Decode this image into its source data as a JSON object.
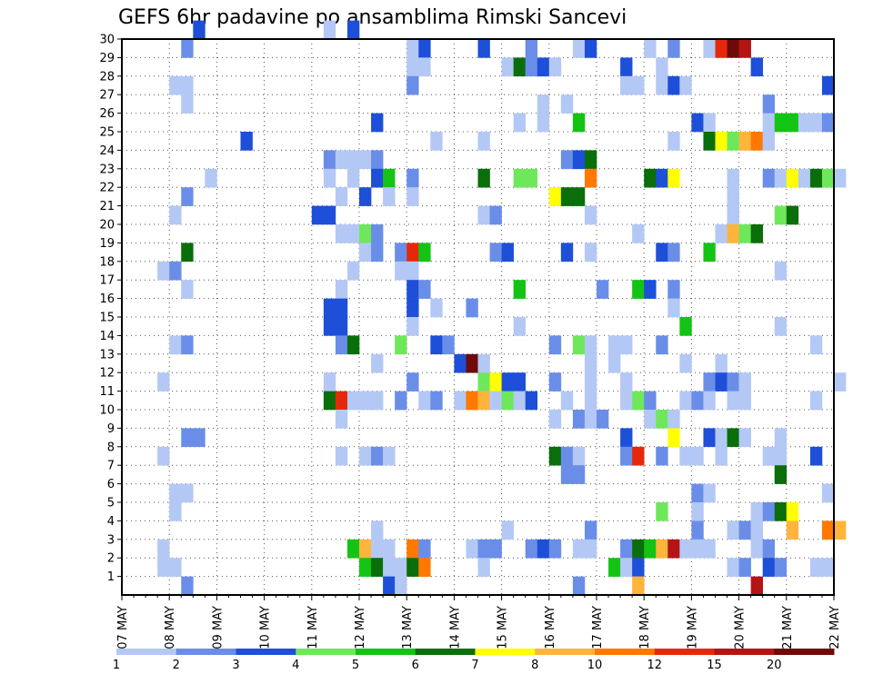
{
  "chart_data": {
    "type": "heatmap",
    "title": "GEFS 6hr padavine po ansamblima Rimski Sancevi",
    "xlabel": "",
    "ylabel": "",
    "x_unit": "6-hour steps",
    "x_range": [
      0,
      60
    ],
    "x_ticks": [
      "07 MAY",
      "08 MAY",
      "09 MAY",
      "10 MAY",
      "11 MAY",
      "12 MAY",
      "13 MAY",
      "14 MAY",
      "15 MAY",
      "16 MAY",
      "17 MAY",
      "18 MAY",
      "19 MAY",
      "20 MAY",
      "21 MAY",
      "22 MAY"
    ],
    "y_ticks": [
      1,
      2,
      3,
      4,
      5,
      6,
      7,
      8,
      9,
      10,
      11,
      12,
      13,
      14,
      15,
      16,
      17,
      18,
      19,
      20,
      21,
      22,
      23,
      24,
      25,
      26,
      27,
      28,
      29,
      30
    ],
    "y_range": [
      0,
      30
    ],
    "grid": true,
    "colorbar": {
      "labels": [
        "1",
        "2",
        "3",
        "4",
        "5",
        "6",
        "7",
        "8",
        "10",
        "12",
        "15",
        "20"
      ],
      "colors": [
        "#b4c8f5",
        "#6a8ee8",
        "#1e4fd8",
        "#6ee85a",
        "#14c414",
        "#0a6e0a",
        "#ffff00",
        "#ffb43c",
        "#ff7800",
        "#e6280a",
        "#b41414",
        "#6e0a0a"
      ]
    },
    "cells": [
      [
        6,
        30,
        2
      ],
      [
        17,
        30,
        0
      ],
      [
        19,
        30,
        2
      ],
      [
        5,
        29,
        1
      ],
      [
        24,
        29,
        0
      ],
      [
        25,
        29,
        2
      ],
      [
        30,
        29,
        2
      ],
      [
        34,
        29,
        1
      ],
      [
        38,
        29,
        0
      ],
      [
        39,
        29,
        2
      ],
      [
        44,
        29,
        0
      ],
      [
        46,
        29,
        1
      ],
      [
        49,
        29,
        0
      ],
      [
        50,
        29,
        9
      ],
      [
        51,
        29,
        11
      ],
      [
        52,
        29,
        10
      ],
      [
        24,
        28,
        0
      ],
      [
        25,
        28,
        0
      ],
      [
        32,
        28,
        0
      ],
      [
        33,
        28,
        5
      ],
      [
        34,
        28,
        1
      ],
      [
        35,
        28,
        2
      ],
      [
        36,
        28,
        0
      ],
      [
        42,
        28,
        2
      ],
      [
        45,
        28,
        0
      ],
      [
        53,
        28,
        2
      ],
      [
        4,
        27,
        0
      ],
      [
        5,
        27,
        0
      ],
      [
        24,
        27,
        1
      ],
      [
        42,
        27,
        0
      ],
      [
        43,
        27,
        0
      ],
      [
        45,
        27,
        0
      ],
      [
        46,
        27,
        2
      ],
      [
        47,
        27,
        0
      ],
      [
        59,
        27,
        2
      ],
      [
        5,
        26,
        0
      ],
      [
        35,
        26,
        0
      ],
      [
        37,
        26,
        0
      ],
      [
        54,
        26,
        1
      ],
      [
        21,
        25,
        2
      ],
      [
        33,
        25,
        0
      ],
      [
        35,
        25,
        0
      ],
      [
        38,
        25,
        4
      ],
      [
        48,
        25,
        2
      ],
      [
        49,
        25,
        0
      ],
      [
        54,
        25,
        0
      ],
      [
        55,
        25,
        4
      ],
      [
        56,
        25,
        4
      ],
      [
        57,
        25,
        0
      ],
      [
        58,
        25,
        0
      ],
      [
        59,
        25,
        1
      ],
      [
        10,
        24,
        2
      ],
      [
        26,
        24,
        0
      ],
      [
        30,
        24,
        0
      ],
      [
        46,
        24,
        0
      ],
      [
        49,
        24,
        5
      ],
      [
        50,
        24,
        6
      ],
      [
        51,
        24,
        3
      ],
      [
        52,
        24,
        7
      ],
      [
        53,
        24,
        8
      ],
      [
        54,
        24,
        0
      ],
      [
        17,
        23,
        1
      ],
      [
        18,
        23,
        0
      ],
      [
        19,
        23,
        0
      ],
      [
        20,
        23,
        0
      ],
      [
        21,
        23,
        1
      ],
      [
        37,
        23,
        1
      ],
      [
        38,
        23,
        2
      ],
      [
        39,
        23,
        5
      ],
      [
        7,
        22,
        0
      ],
      [
        17,
        22,
        0
      ],
      [
        19,
        22,
        0
      ],
      [
        21,
        22,
        2
      ],
      [
        22,
        22,
        4
      ],
      [
        24,
        22,
        1
      ],
      [
        30,
        22,
        5
      ],
      [
        33,
        22,
        3
      ],
      [
        34,
        22,
        3
      ],
      [
        39,
        22,
        8
      ],
      [
        44,
        22,
        5
      ],
      [
        45,
        22,
        2
      ],
      [
        46,
        22,
        6
      ],
      [
        51,
        22,
        0
      ],
      [
        54,
        22,
        1
      ],
      [
        55,
        22,
        0
      ],
      [
        56,
        22,
        6
      ],
      [
        57,
        22,
        0
      ],
      [
        58,
        22,
        5
      ],
      [
        59,
        22,
        3
      ],
      [
        60,
        22,
        0
      ],
      [
        5,
        21,
        1
      ],
      [
        18,
        21,
        0
      ],
      [
        20,
        21,
        2
      ],
      [
        22,
        21,
        0
      ],
      [
        24,
        21,
        0
      ],
      [
        36,
        21,
        6
      ],
      [
        37,
        21,
        5
      ],
      [
        38,
        21,
        5
      ],
      [
        51,
        21,
        0
      ],
      [
        4,
        20,
        0
      ],
      [
        16,
        20,
        2
      ],
      [
        17,
        20,
        2
      ],
      [
        30,
        20,
        0
      ],
      [
        31,
        20,
        1
      ],
      [
        39,
        20,
        0
      ],
      [
        51,
        20,
        0
      ],
      [
        55,
        20,
        3
      ],
      [
        56,
        20,
        5
      ],
      [
        18,
        19,
        0
      ],
      [
        19,
        19,
        0
      ],
      [
        20,
        19,
        3
      ],
      [
        21,
        19,
        1
      ],
      [
        43,
        19,
        0
      ],
      [
        50,
        19,
        0
      ],
      [
        51,
        19,
        7
      ],
      [
        52,
        19,
        3
      ],
      [
        53,
        19,
        5
      ],
      [
        5,
        18,
        5
      ],
      [
        20,
        18,
        0
      ],
      [
        21,
        18,
        1
      ],
      [
        23,
        18,
        1
      ],
      [
        24,
        18,
        9
      ],
      [
        25,
        18,
        4
      ],
      [
        31,
        18,
        1
      ],
      [
        32,
        18,
        2
      ],
      [
        37,
        18,
        2
      ],
      [
        39,
        18,
        0
      ],
      [
        45,
        18,
        2
      ],
      [
        46,
        18,
        1
      ],
      [
        49,
        18,
        4
      ],
      [
        3,
        17,
        0
      ],
      [
        4,
        17,
        1
      ],
      [
        19,
        17,
        0
      ],
      [
        23,
        17,
        0
      ],
      [
        24,
        17,
        0
      ],
      [
        55,
        17,
        0
      ],
      [
        5,
        16,
        0
      ],
      [
        18,
        16,
        0
      ],
      [
        24,
        16,
        2
      ],
      [
        25,
        16,
        1
      ],
      [
        33,
        16,
        4
      ],
      [
        40,
        16,
        1
      ],
      [
        43,
        16,
        4
      ],
      [
        44,
        16,
        2
      ],
      [
        46,
        16,
        1
      ],
      [
        17,
        15,
        2
      ],
      [
        18,
        15,
        2
      ],
      [
        24,
        15,
        2
      ],
      [
        26,
        15,
        0
      ],
      [
        29,
        15,
        1
      ],
      [
        46,
        15,
        0
      ],
      [
        17,
        14,
        2
      ],
      [
        18,
        14,
        2
      ],
      [
        24,
        14,
        0
      ],
      [
        33,
        14,
        0
      ],
      [
        47,
        14,
        4
      ],
      [
        55,
        14,
        0
      ],
      [
        4,
        13,
        0
      ],
      [
        5,
        13,
        1
      ],
      [
        18,
        13,
        1
      ],
      [
        19,
        13,
        5
      ],
      [
        23,
        13,
        3
      ],
      [
        26,
        13,
        2
      ],
      [
        27,
        13,
        1
      ],
      [
        36,
        13,
        1
      ],
      [
        38,
        13,
        3
      ],
      [
        39,
        13,
        0
      ],
      [
        41,
        13,
        0
      ],
      [
        42,
        13,
        0
      ],
      [
        45,
        13,
        1
      ],
      [
        58,
        13,
        0
      ],
      [
        21,
        12,
        0
      ],
      [
        28,
        12,
        2
      ],
      [
        29,
        12,
        11
      ],
      [
        30,
        12,
        0
      ],
      [
        39,
        12,
        0
      ],
      [
        41,
        12,
        0
      ],
      [
        47,
        12,
        0
      ],
      [
        50,
        12,
        0
      ],
      [
        3,
        11,
        0
      ],
      [
        17,
        11,
        0
      ],
      [
        24,
        11,
        1
      ],
      [
        30,
        11,
        3
      ],
      [
        31,
        11,
        6
      ],
      [
        32,
        11,
        2
      ],
      [
        33,
        11,
        2
      ],
      [
        36,
        11,
        1
      ],
      [
        39,
        11,
        0
      ],
      [
        42,
        11,
        0
      ],
      [
        49,
        11,
        1
      ],
      [
        50,
        11,
        2
      ],
      [
        51,
        11,
        1
      ],
      [
        52,
        11,
        0
      ],
      [
        60,
        11,
        0
      ],
      [
        17,
        10,
        5
      ],
      [
        18,
        10,
        9
      ],
      [
        19,
        10,
        0
      ],
      [
        20,
        10,
        0
      ],
      [
        21,
        10,
        0
      ],
      [
        23,
        10,
        1
      ],
      [
        25,
        10,
        0
      ],
      [
        26,
        10,
        1
      ],
      [
        28,
        10,
        0
      ],
      [
        29,
        10,
        8
      ],
      [
        30,
        10,
        7
      ],
      [
        31,
        10,
        0
      ],
      [
        32,
        10,
        3
      ],
      [
        33,
        10,
        0
      ],
      [
        34,
        10,
        2
      ],
      [
        37,
        10,
        0
      ],
      [
        39,
        10,
        0
      ],
      [
        42,
        10,
        0
      ],
      [
        43,
        10,
        3
      ],
      [
        44,
        10,
        1
      ],
      [
        47,
        10,
        0
      ],
      [
        48,
        10,
        1
      ],
      [
        49,
        10,
        0
      ],
      [
        51,
        10,
        0
      ],
      [
        52,
        10,
        0
      ],
      [
        58,
        10,
        0
      ],
      [
        18,
        9,
        0
      ],
      [
        36,
        9,
        0
      ],
      [
        38,
        9,
        1
      ],
      [
        39,
        9,
        0
      ],
      [
        40,
        9,
        1
      ],
      [
        44,
        9,
        0
      ],
      [
        45,
        9,
        3
      ],
      [
        46,
        9,
        0
      ],
      [
        5,
        8,
        1
      ],
      [
        6,
        8,
        1
      ],
      [
        42,
        8,
        2
      ],
      [
        46,
        8,
        6
      ],
      [
        49,
        8,
        2
      ],
      [
        50,
        8,
        0
      ],
      [
        51,
        8,
        5
      ],
      [
        52,
        8,
        0
      ],
      [
        55,
        8,
        0
      ],
      [
        3,
        7,
        0
      ],
      [
        18,
        7,
        0
      ],
      [
        20,
        7,
        0
      ],
      [
        21,
        7,
        1
      ],
      [
        22,
        7,
        0
      ],
      [
        36,
        7,
        5
      ],
      [
        37,
        7,
        1
      ],
      [
        38,
        7,
        0
      ],
      [
        42,
        7,
        1
      ],
      [
        43,
        7,
        9
      ],
      [
        45,
        7,
        1
      ],
      [
        47,
        7,
        0
      ],
      [
        48,
        7,
        0
      ],
      [
        50,
        7,
        0
      ],
      [
        54,
        7,
        0
      ],
      [
        55,
        7,
        0
      ],
      [
        58,
        7,
        2
      ],
      [
        37,
        6,
        1
      ],
      [
        38,
        6,
        1
      ],
      [
        55,
        6,
        5
      ],
      [
        4,
        5,
        0
      ],
      [
        5,
        5,
        0
      ],
      [
        48,
        5,
        1
      ],
      [
        49,
        5,
        0
      ],
      [
        59,
        5,
        0
      ],
      [
        4,
        4,
        0
      ],
      [
        45,
        4,
        3
      ],
      [
        48,
        4,
        0
      ],
      [
        53,
        4,
        0
      ],
      [
        54,
        4,
        1
      ],
      [
        55,
        4,
        5
      ],
      [
        56,
        4,
        6
      ],
      [
        21,
        3,
        0
      ],
      [
        32,
        3,
        0
      ],
      [
        39,
        3,
        1
      ],
      [
        48,
        3,
        1
      ],
      [
        51,
        3,
        0
      ],
      [
        52,
        3,
        1
      ],
      [
        53,
        3,
        0
      ],
      [
        56,
        3,
        7
      ],
      [
        59,
        3,
        8
      ],
      [
        60,
        3,
        7
      ],
      [
        3,
        2,
        0
      ],
      [
        19,
        2,
        4
      ],
      [
        20,
        2,
        7
      ],
      [
        21,
        2,
        0
      ],
      [
        22,
        2,
        0
      ],
      [
        24,
        2,
        8
      ],
      [
        25,
        2,
        1
      ],
      [
        29,
        2,
        0
      ],
      [
        30,
        2,
        1
      ],
      [
        31,
        2,
        1
      ],
      [
        34,
        2,
        1
      ],
      [
        35,
        2,
        2
      ],
      [
        36,
        2,
        1
      ],
      [
        38,
        2,
        0
      ],
      [
        39,
        2,
        0
      ],
      [
        42,
        2,
        1
      ],
      [
        43,
        2,
        5
      ],
      [
        44,
        2,
        4
      ],
      [
        45,
        2,
        7
      ],
      [
        46,
        2,
        10
      ],
      [
        47,
        2,
        0
      ],
      [
        48,
        2,
        0
      ],
      [
        49,
        2,
        0
      ],
      [
        53,
        2,
        0
      ],
      [
        54,
        2,
        1
      ],
      [
        3,
        1,
        0
      ],
      [
        4,
        1,
        0
      ],
      [
        20,
        1,
        4
      ],
      [
        21,
        1,
        5
      ],
      [
        22,
        1,
        0
      ],
      [
        23,
        1,
        0
      ],
      [
        24,
        1,
        5
      ],
      [
        25,
        1,
        8
      ],
      [
        30,
        1,
        0
      ],
      [
        41,
        1,
        4
      ],
      [
        42,
        1,
        0
      ],
      [
        43,
        1,
        2
      ],
      [
        51,
        1,
        0
      ],
      [
        52,
        1,
        1
      ],
      [
        54,
        1,
        2
      ],
      [
        55,
        1,
        1
      ],
      [
        58,
        1,
        0
      ],
      [
        59,
        1,
        0
      ],
      [
        5,
        0,
        1
      ],
      [
        22,
        0,
        2
      ],
      [
        23,
        0,
        0
      ],
      [
        38,
        0,
        1
      ],
      [
        43,
        0,
        7
      ],
      [
        53,
        0,
        10
      ]
    ]
  }
}
